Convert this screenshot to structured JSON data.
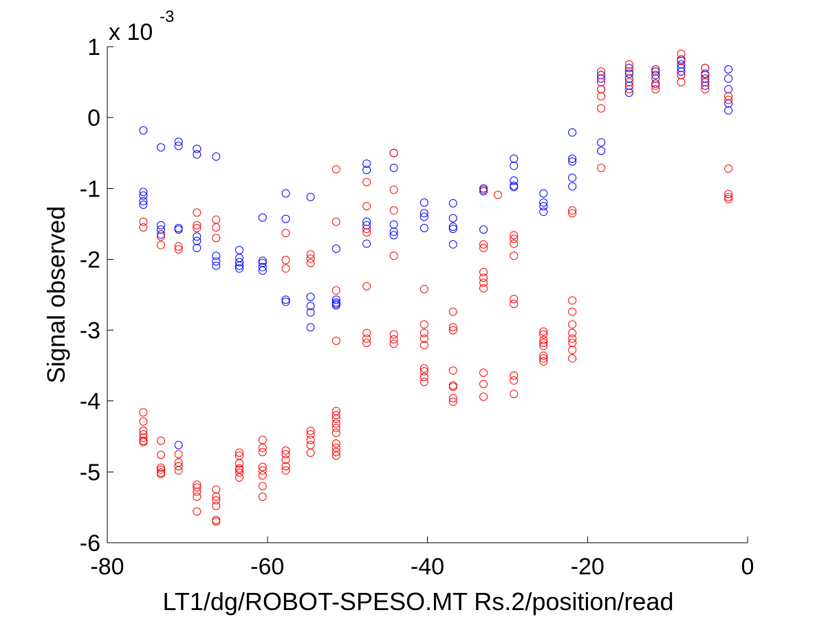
{
  "chart_data": {
    "type": "scatter",
    "title": "",
    "xlabel": "LT1/dg/ROBOT-SPESO.MT Rs.2/position/read",
    "ylabel": "Signal observed",
    "y_exponent": {
      "base": "x 10",
      "power": "-3"
    },
    "xlim": [
      -80,
      0
    ],
    "ylim": [
      -6,
      1
    ],
    "xticks": [
      -80,
      -60,
      -40,
      -20,
      0
    ],
    "yticks": [
      -6,
      -5,
      -4,
      -3,
      -2,
      -1,
      0,
      1
    ],
    "xtick_labels": [
      "-80",
      "-60",
      "-40",
      "-20",
      "0"
    ],
    "ytick_labels": [
      "-6",
      "-5",
      "-4",
      "-3",
      "-2",
      "-1",
      "0",
      "1"
    ],
    "grid": false,
    "marker": "open-circle",
    "series": [
      {
        "color": "#0000ff",
        "x": [
          -75.5,
          -75.5,
          -75.5,
          -75.5,
          -75.5,
          -73.3,
          -73.3,
          -73.3,
          -73.3,
          -71.1,
          -71.1,
          -71.1,
          -71.1,
          -71.1,
          -68.8,
          -68.8,
          -68.8,
          -68.8,
          -68.8,
          -66.4,
          -66.4,
          -66.4,
          -66.4,
          -63.5,
          -63.5,
          -63.5,
          -63.5,
          -63.5,
          -60.6,
          -60.6,
          -60.6,
          -60.6,
          -60.6,
          -57.7,
          -57.7,
          -57.7,
          -57.7,
          -54.6,
          -54.6,
          -54.6,
          -54.6,
          -54.6,
          -51.4,
          -51.4,
          -51.4,
          -51.4,
          -51.4,
          -47.6,
          -47.6,
          -47.6,
          -47.6,
          -47.6,
          -44.2,
          -44.2,
          -44.2,
          -44.2,
          -44.2,
          -40.4,
          -40.4,
          -40.4,
          -40.4,
          -36.8,
          -36.8,
          -36.8,
          -36.8,
          -36.8,
          -33.0,
          -33.0,
          -33.0,
          -29.2,
          -29.2,
          -29.2,
          -29.2,
          -29.2,
          -25.5,
          -25.5,
          -25.5,
          -25.5,
          -21.9,
          -21.9,
          -21.9,
          -21.9,
          -21.9,
          -18.3,
          -18.3,
          -18.3,
          -18.3,
          -18.3,
          -14.8,
          -14.8,
          -14.8,
          -14.8,
          -14.8,
          -11.5,
          -11.5,
          -11.5,
          -11.5,
          -11.5,
          -8.3,
          -8.3,
          -8.3,
          -8.3,
          -8.3,
          -5.3,
          -5.3,
          -5.3,
          -5.3,
          -5.3,
          -2.4,
          -2.4,
          -2.4,
          -2.4,
          -2.4
        ],
        "y": [
          -0.18,
          -1.05,
          -1.1,
          -1.18,
          -1.23,
          -0.42,
          -1.52,
          -1.58,
          -1.65,
          -0.34,
          -0.4,
          -1.56,
          -1.58,
          -4.62,
          -0.44,
          -0.52,
          -1.68,
          -1.74,
          -1.84,
          -0.55,
          -1.95,
          -2.03,
          -2.09,
          -1.87,
          -1.98,
          -2.04,
          -2.09,
          -2.13,
          -1.41,
          -2.02,
          -2.05,
          -2.11,
          -2.16,
          -1.07,
          -1.43,
          -2.57,
          -2.6,
          -1.12,
          -2.53,
          -2.66,
          -2.75,
          -2.96,
          -1.85,
          -2.57,
          -2.61,
          -2.63,
          -2.65,
          -0.65,
          -0.74,
          -1.47,
          -1.52,
          -1.78,
          -0.5,
          -0.71,
          -1.51,
          -1.61,
          -1.66,
          -1.2,
          -1.35,
          -1.4,
          -1.56,
          -1.21,
          -1.42,
          -1.54,
          -1.57,
          -1.79,
          -1.0,
          -1.04,
          -1.58,
          -0.58,
          -0.68,
          -0.89,
          -0.96,
          -0.98,
          -1.07,
          -1.2,
          -1.25,
          -1.33,
          -0.21,
          -0.58,
          -0.62,
          -0.85,
          -0.97,
          -0.35,
          -0.47,
          0.4,
          0.55,
          0.6,
          0.35,
          0.45,
          0.55,
          0.62,
          0.7,
          0.48,
          0.55,
          0.6,
          0.65,
          0.68,
          0.6,
          0.65,
          0.7,
          0.75,
          0.82,
          0.45,
          0.5,
          0.55,
          0.62,
          0.7,
          0.1,
          0.2,
          0.4,
          0.55,
          0.68
        ]
      },
      {
        "color": "#ff0000",
        "x": [
          -75.5,
          -75.5,
          -75.5,
          -75.5,
          -75.5,
          -75.5,
          -75.5,
          -75.5,
          -75.5,
          -73.3,
          -73.3,
          -73.3,
          -73.3,
          -73.3,
          -73.3,
          -73.3,
          -73.3,
          -71.1,
          -71.1,
          -71.1,
          -71.1,
          -71.1,
          -71.1,
          -68.8,
          -68.8,
          -68.8,
          -68.8,
          -68.8,
          -68.8,
          -68.8,
          -68.8,
          -66.4,
          -66.4,
          -66.4,
          -66.4,
          -66.4,
          -66.4,
          -66.4,
          -66.4,
          -66.4,
          -63.5,
          -63.5,
          -63.5,
          -63.5,
          -63.5,
          -63.5,
          -63.5,
          -60.6,
          -60.6,
          -60.6,
          -60.6,
          -60.6,
          -60.6,
          -60.6,
          -60.6,
          -57.7,
          -57.7,
          -57.7,
          -57.7,
          -57.7,
          -57.7,
          -57.7,
          -57.7,
          -54.6,
          -54.6,
          -54.6,
          -54.6,
          -54.6,
          -54.6,
          -54.6,
          -54.6,
          -51.4,
          -51.4,
          -51.4,
          -51.4,
          -51.4,
          -51.4,
          -51.4,
          -51.4,
          -51.4,
          -51.4,
          -51.4,
          -51.4,
          -51.4,
          -51.4,
          -47.6,
          -47.6,
          -47.6,
          -47.6,
          -47.6,
          -47.6,
          -47.6,
          -47.6,
          -44.2,
          -44.2,
          -44.2,
          -44.2,
          -44.2,
          -44.2,
          -44.2,
          -40.4,
          -40.4,
          -40.4,
          -40.4,
          -40.4,
          -40.4,
          -40.4,
          -40.4,
          -40.4,
          -36.8,
          -36.8,
          -36.8,
          -36.8,
          -36.8,
          -36.8,
          -36.8,
          -36.8,
          -33.0,
          -33.0,
          -33.0,
          -33.0,
          -33.0,
          -33.0,
          -33.0,
          -33.0,
          -33.0,
          -33.0,
          -31.2,
          -29.2,
          -29.2,
          -29.2,
          -29.2,
          -29.2,
          -29.2,
          -29.2,
          -29.2,
          -29.2,
          -25.5,
          -25.5,
          -25.5,
          -25.5,
          -25.5,
          -25.5,
          -25.5,
          -25.5,
          -21.9,
          -21.9,
          -21.9,
          -21.9,
          -21.9,
          -21.9,
          -21.9,
          -21.9,
          -21.9,
          -21.9,
          -18.3,
          -18.3,
          -18.3,
          -18.3,
          -18.3,
          -18.3,
          -14.8,
          -14.8,
          -14.8,
          -14.8,
          -11.5,
          -11.5,
          -11.5,
          -11.5,
          -8.3,
          -8.3,
          -8.3,
          -8.3,
          -5.3,
          -5.3,
          -5.3,
          -5.3,
          -2.4,
          -2.4,
          -2.4,
          -2.4,
          -2.4,
          -2.4
        ],
        "y": [
          -1.47,
          -1.55,
          -4.16,
          -4.29,
          -4.42,
          -4.47,
          -4.52,
          -4.56,
          -4.58,
          -1.68,
          -1.8,
          -4.56,
          -4.76,
          -4.94,
          -4.97,
          -5.01,
          -5.03,
          -1.82,
          -1.86,
          -4.75,
          -4.87,
          -4.92,
          -4.98,
          -1.34,
          -1.52,
          -1.56,
          -5.18,
          -5.22,
          -5.28,
          -5.35,
          -5.56,
          -1.44,
          -1.55,
          -1.7,
          -5.25,
          -5.35,
          -5.4,
          -5.48,
          -5.68,
          -5.7,
          -4.73,
          -4.77,
          -4.88,
          -4.95,
          -4.97,
          -5.01,
          -5.08,
          -4.55,
          -4.66,
          -4.72,
          -4.93,
          -4.98,
          -5.05,
          -5.2,
          -5.35,
          -1.63,
          -2.01,
          -2.13,
          -4.7,
          -4.75,
          -4.83,
          -4.92,
          -4.98,
          -1.93,
          -1.99,
          -2.05,
          -4.42,
          -4.47,
          -4.55,
          -4.62,
          -4.73,
          -0.73,
          -1.47,
          -2.44,
          -3.15,
          -4.14,
          -4.2,
          -4.25,
          -4.32,
          -4.38,
          -4.45,
          -4.6,
          -4.66,
          -4.72,
          -4.77,
          -0.91,
          -1.25,
          -1.57,
          -1.62,
          -2.38,
          -3.04,
          -3.12,
          -3.18,
          -0.5,
          -1.02,
          -1.31,
          -1.95,
          -3.06,
          -3.13,
          -3.19,
          -2.42,
          -2.92,
          -3.04,
          -3.12,
          -3.21,
          -3.54,
          -3.58,
          -3.66,
          -3.73,
          -2.74,
          -2.96,
          -3.0,
          -3.57,
          -3.78,
          -3.8,
          -3.96,
          -4.01,
          -1.02,
          -1.79,
          -1.84,
          -2.18,
          -2.26,
          -2.33,
          -2.41,
          -3.6,
          -3.76,
          -3.94,
          -1.09,
          -1.66,
          -1.71,
          -1.78,
          -1.95,
          -2.56,
          -2.63,
          -3.64,
          -3.71,
          -3.9,
          -3.02,
          -3.06,
          -3.14,
          -3.18,
          -3.22,
          -3.36,
          -3.4,
          -3.44,
          -1.31,
          -1.35,
          -2.58,
          -2.74,
          -2.92,
          -3.04,
          -3.12,
          -3.18,
          -3.28,
          -3.4,
          -0.71,
          0.13,
          0.3,
          0.4,
          0.5,
          0.65,
          0.4,
          0.5,
          0.65,
          0.75,
          0.4,
          0.45,
          0.55,
          0.68,
          0.5,
          0.6,
          0.8,
          0.9,
          0.4,
          0.5,
          0.6,
          0.7,
          -0.72,
          -1.08,
          -1.12,
          -1.15,
          0.25,
          0.3
        ]
      }
    ]
  }
}
